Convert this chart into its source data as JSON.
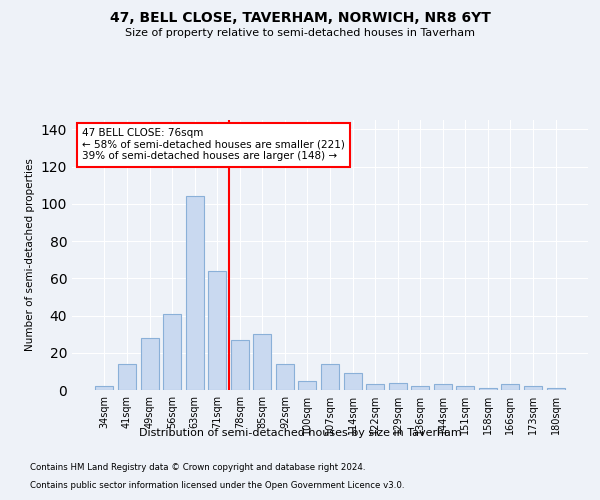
{
  "title": "47, BELL CLOSE, TAVERHAM, NORWICH, NR8 6YT",
  "subtitle": "Size of property relative to semi-detached houses in Taverham",
  "xlabel": "Distribution of semi-detached houses by size in Taverham",
  "ylabel": "Number of semi-detached properties",
  "categories": [
    "34sqm",
    "41sqm",
    "49sqm",
    "56sqm",
    "63sqm",
    "71sqm",
    "78sqm",
    "85sqm",
    "92sqm",
    "100sqm",
    "107sqm",
    "114sqm",
    "122sqm",
    "129sqm",
    "136sqm",
    "144sqm",
    "151sqm",
    "158sqm",
    "166sqm",
    "173sqm",
    "180sqm"
  ],
  "values": [
    2,
    14,
    28,
    41,
    104,
    64,
    27,
    30,
    14,
    5,
    14,
    9,
    3,
    4,
    2,
    3,
    2,
    1,
    3,
    2,
    1
  ],
  "bar_color": "#c9d9f0",
  "bar_edge_color": "#8ab0d8",
  "vline_color": "red",
  "annotation_text": "47 BELL CLOSE: 76sqm\n← 58% of semi-detached houses are smaller (221)\n39% of semi-detached houses are larger (148) →",
  "annotation_box_color": "white",
  "annotation_box_edge": "red",
  "ylim": [
    0,
    145
  ],
  "footer_line1": "Contains HM Land Registry data © Crown copyright and database right 2024.",
  "footer_line2": "Contains public sector information licensed under the Open Government Licence v3.0.",
  "bg_color": "#eef2f8",
  "plot_bg_color": "#eef2f8"
}
